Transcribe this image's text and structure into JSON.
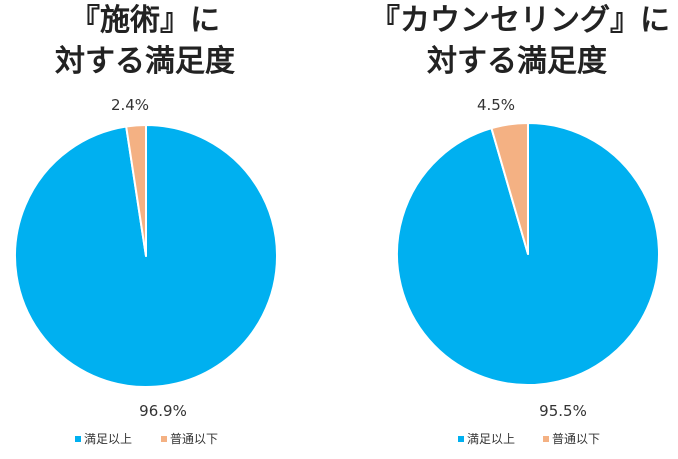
{
  "chart_data": [
    {
      "type": "pie",
      "title_lines": [
        "『施術』に",
        "対する満足度"
      ],
      "slices": [
        {
          "label": "満足以上",
          "value": 96.9,
          "display": "96.9%",
          "color": "#00b0f0"
        },
        {
          "label": "普通以下",
          "value": 2.4,
          "display": "2.4%",
          "color": "#f4b183"
        }
      ],
      "legend": [
        "満足以上",
        "普通以下"
      ],
      "legend_position": "bottom"
    },
    {
      "type": "pie",
      "title_lines": [
        "『カウンセリング』に",
        "対する満足度"
      ],
      "slices": [
        {
          "label": "満足以上",
          "value": 95.5,
          "display": "95.5%",
          "color": "#00b0f0"
        },
        {
          "label": "普通以下",
          "value": 4.5,
          "display": "4.5%",
          "color": "#f4b183"
        }
      ],
      "legend": [
        "満足以上",
        "普通以下"
      ],
      "legend_position": "bottom"
    }
  ]
}
